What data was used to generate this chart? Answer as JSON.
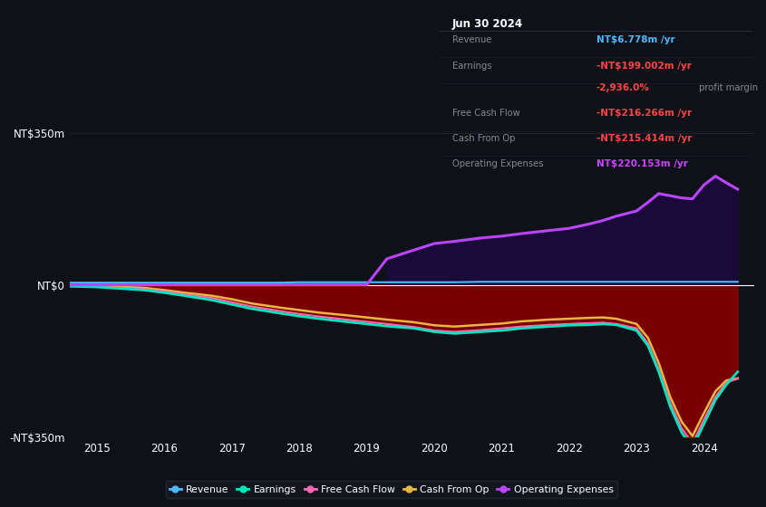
{
  "bg_color": "#0e1218",
  "plot_bg_color": "#0e1218",
  "title_box": {
    "date": "Jun 30 2024",
    "rows": [
      {
        "label": "Revenue",
        "value": "NT$6.778m /yr",
        "value_color": "#4db8ff"
      },
      {
        "label": "Earnings",
        "value": "-NT$199.002m /yr",
        "value_color": "#ff4444"
      },
      {
        "label": "",
        "value": "-2,936.0%",
        "value_color": "#ff4444",
        "suffix": " profit margin",
        "suffix_color": "#888888"
      },
      {
        "label": "Free Cash Flow",
        "value": "-NT$216.266m /yr",
        "value_color": "#ff4444"
      },
      {
        "label": "Cash From Op",
        "value": "-NT$215.414m /yr",
        "value_color": "#ff4444"
      },
      {
        "label": "Operating Expenses",
        "value": "NT$220.153m /yr",
        "value_color": "#cc44ff"
      }
    ]
  },
  "years": [
    2014.5,
    2015.0,
    2015.3,
    2015.7,
    2016.0,
    2016.3,
    2016.7,
    2017.0,
    2017.3,
    2017.7,
    2018.0,
    2018.3,
    2018.7,
    2019.0,
    2019.3,
    2019.7,
    2020.0,
    2020.3,
    2020.7,
    2021.0,
    2021.3,
    2021.7,
    2022.0,
    2022.3,
    2022.5,
    2022.7,
    2023.0,
    2023.17,
    2023.33,
    2023.5,
    2023.67,
    2023.83,
    2024.0,
    2024.17,
    2024.33,
    2024.5
  ],
  "revenue": [
    5,
    5,
    5,
    5,
    5,
    5,
    5,
    5,
    5,
    5,
    6,
    6,
    6,
    6,
    6,
    6,
    6,
    6,
    7,
    7,
    7,
    7,
    7,
    7,
    7,
    7,
    7,
    7,
    7,
    7,
    7,
    7,
    7,
    7,
    7,
    7
  ],
  "earnings": [
    -3,
    -5,
    -8,
    -12,
    -18,
    -25,
    -35,
    -45,
    -55,
    -65,
    -72,
    -78,
    -85,
    -90,
    -95,
    -100,
    -108,
    -112,
    -108,
    -105,
    -100,
    -96,
    -93,
    -92,
    -90,
    -92,
    -105,
    -140,
    -200,
    -280,
    -340,
    -375,
    -320,
    -265,
    -230,
    -200
  ],
  "free_cash_flow": [
    -2,
    -4,
    -7,
    -10,
    -15,
    -22,
    -30,
    -40,
    -50,
    -60,
    -67,
    -73,
    -80,
    -85,
    -90,
    -97,
    -105,
    -108,
    -104,
    -100,
    -96,
    -92,
    -90,
    -88,
    -87,
    -90,
    -100,
    -135,
    -195,
    -272,
    -330,
    -365,
    -310,
    -258,
    -225,
    -216
  ],
  "cash_from_op": [
    -1,
    -2,
    -4,
    -7,
    -12,
    -18,
    -25,
    -33,
    -43,
    -52,
    -58,
    -64,
    -70,
    -75,
    -80,
    -86,
    -93,
    -96,
    -92,
    -89,
    -84,
    -80,
    -78,
    -76,
    -75,
    -78,
    -90,
    -122,
    -180,
    -258,
    -315,
    -348,
    -295,
    -245,
    -220,
    -215
  ],
  "operating_expenses": [
    0,
    0,
    0,
    0,
    0,
    0,
    0,
    0,
    0,
    0,
    0,
    0,
    0,
    0,
    60,
    80,
    95,
    100,
    108,
    112,
    118,
    125,
    130,
    140,
    148,
    158,
    170,
    190,
    210,
    205,
    200,
    198,
    230,
    250,
    235,
    220
  ],
  "ylim": [
    -350,
    350
  ],
  "yticks": [
    -350,
    0,
    350
  ],
  "ytick_labels": [
    "-NT$350m",
    "NT$0",
    "NT$350m"
  ],
  "grid_color": "#2a2a3a",
  "zero_line_color": "#ffffff",
  "legend": [
    {
      "label": "Revenue",
      "color": "#4db8ff"
    },
    {
      "label": "Earnings",
      "color": "#00e5c0"
    },
    {
      "label": "Free Cash Flow",
      "color": "#ff69b4"
    },
    {
      "label": "Cash From Op",
      "color": "#e8b840"
    },
    {
      "label": "Operating Expenses",
      "color": "#bb44ff"
    }
  ]
}
